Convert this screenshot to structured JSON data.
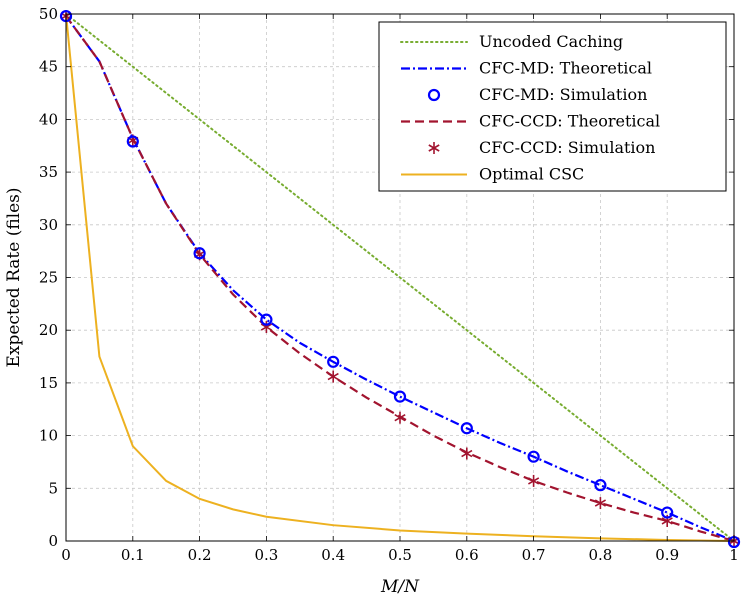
{
  "chart_data": {
    "type": "line",
    "title": "",
    "xlabel": "M/N",
    "ylabel": "Expected Rate (files)",
    "xlim": [
      0,
      1
    ],
    "ylim": [
      0,
      50
    ],
    "grid": true,
    "legend_position": "top-right",
    "x_ticks": [
      0,
      0.1,
      0.2,
      0.3,
      0.4,
      0.5,
      0.6,
      0.7,
      0.8,
      0.9,
      1
    ],
    "x_tick_labels": [
      "0",
      "0.1",
      "0.2",
      "0.3",
      "0.4",
      "0.5",
      "0.6",
      "0.7",
      "0.8",
      "0.9",
      "1"
    ],
    "y_ticks": [
      0,
      5,
      10,
      15,
      20,
      25,
      30,
      35,
      40,
      45,
      50
    ],
    "y_tick_labels": [
      "0",
      "5",
      "10",
      "15",
      "20",
      "25",
      "30",
      "35",
      "40",
      "45",
      "50"
    ],
    "series": [
      {
        "name": "Uncoded Caching",
        "style": "dotted",
        "color": "#77ac30",
        "x": [
          0,
          1
        ],
        "y": [
          50,
          0
        ]
      },
      {
        "name": "CFC-MD: Theoretical",
        "style": "dashdot",
        "color": "#0000ff",
        "x": [
          0,
          0.05,
          0.1,
          0.15,
          0.2,
          0.25,
          0.3,
          0.35,
          0.4,
          0.45,
          0.5,
          0.55,
          0.6,
          0.65,
          0.7,
          0.75,
          0.8,
          0.85,
          0.9,
          0.95,
          1
        ],
        "y": [
          49.8,
          45.5,
          38.2,
          32.0,
          27.3,
          23.8,
          21.0,
          18.8,
          17.0,
          15.3,
          13.7,
          12.2,
          10.7,
          9.3,
          8.0,
          6.6,
          5.3,
          4.0,
          2.7,
          1.3,
          0
        ]
      },
      {
        "name": "CFC-MD: Simulation",
        "style": "circle-markers",
        "color": "#0000ff",
        "x": [
          0,
          0.1,
          0.2,
          0.3,
          0.4,
          0.5,
          0.6,
          0.7,
          0.8,
          0.9,
          1
        ],
        "y": [
          49.8,
          37.9,
          27.3,
          21.0,
          17.0,
          13.7,
          10.7,
          8.0,
          5.3,
          2.7,
          -0.1
        ]
      },
      {
        "name": "CFC-CCD: Theoretical",
        "style": "dashed",
        "color": "#a2142f",
        "x": [
          0,
          0.05,
          0.1,
          0.15,
          0.2,
          0.25,
          0.3,
          0.35,
          0.4,
          0.45,
          0.5,
          0.55,
          0.6,
          0.65,
          0.7,
          0.75,
          0.8,
          0.85,
          0.9,
          0.95,
          1
        ],
        "y": [
          49.8,
          45.5,
          38.2,
          32.0,
          27.2,
          23.4,
          20.3,
          17.8,
          15.6,
          13.6,
          11.8,
          10.0,
          8.4,
          7.0,
          5.7,
          4.6,
          3.6,
          2.7,
          1.9,
          0.9,
          0
        ]
      },
      {
        "name": "CFC-CCD: Simulation",
        "style": "star-markers",
        "color": "#a2142f",
        "x": [
          0,
          0.1,
          0.2,
          0.3,
          0.4,
          0.5,
          0.6,
          0.7,
          0.8,
          0.9,
          1
        ],
        "y": [
          49.8,
          38.0,
          27.2,
          20.3,
          15.6,
          11.7,
          8.3,
          5.7,
          3.6,
          1.9,
          0
        ]
      },
      {
        "name": "Optimal CSC",
        "style": "solid",
        "color": "#edb120",
        "x": [
          0,
          0.05,
          0.1,
          0.15,
          0.2,
          0.25,
          0.3,
          0.4,
          0.5,
          0.6,
          0.7,
          0.8,
          0.9,
          1
        ],
        "y": [
          50,
          17.5,
          9.0,
          5.7,
          4.0,
          3.0,
          2.3,
          1.5,
          1.0,
          0.7,
          0.45,
          0.25,
          0.1,
          0
        ]
      }
    ]
  }
}
